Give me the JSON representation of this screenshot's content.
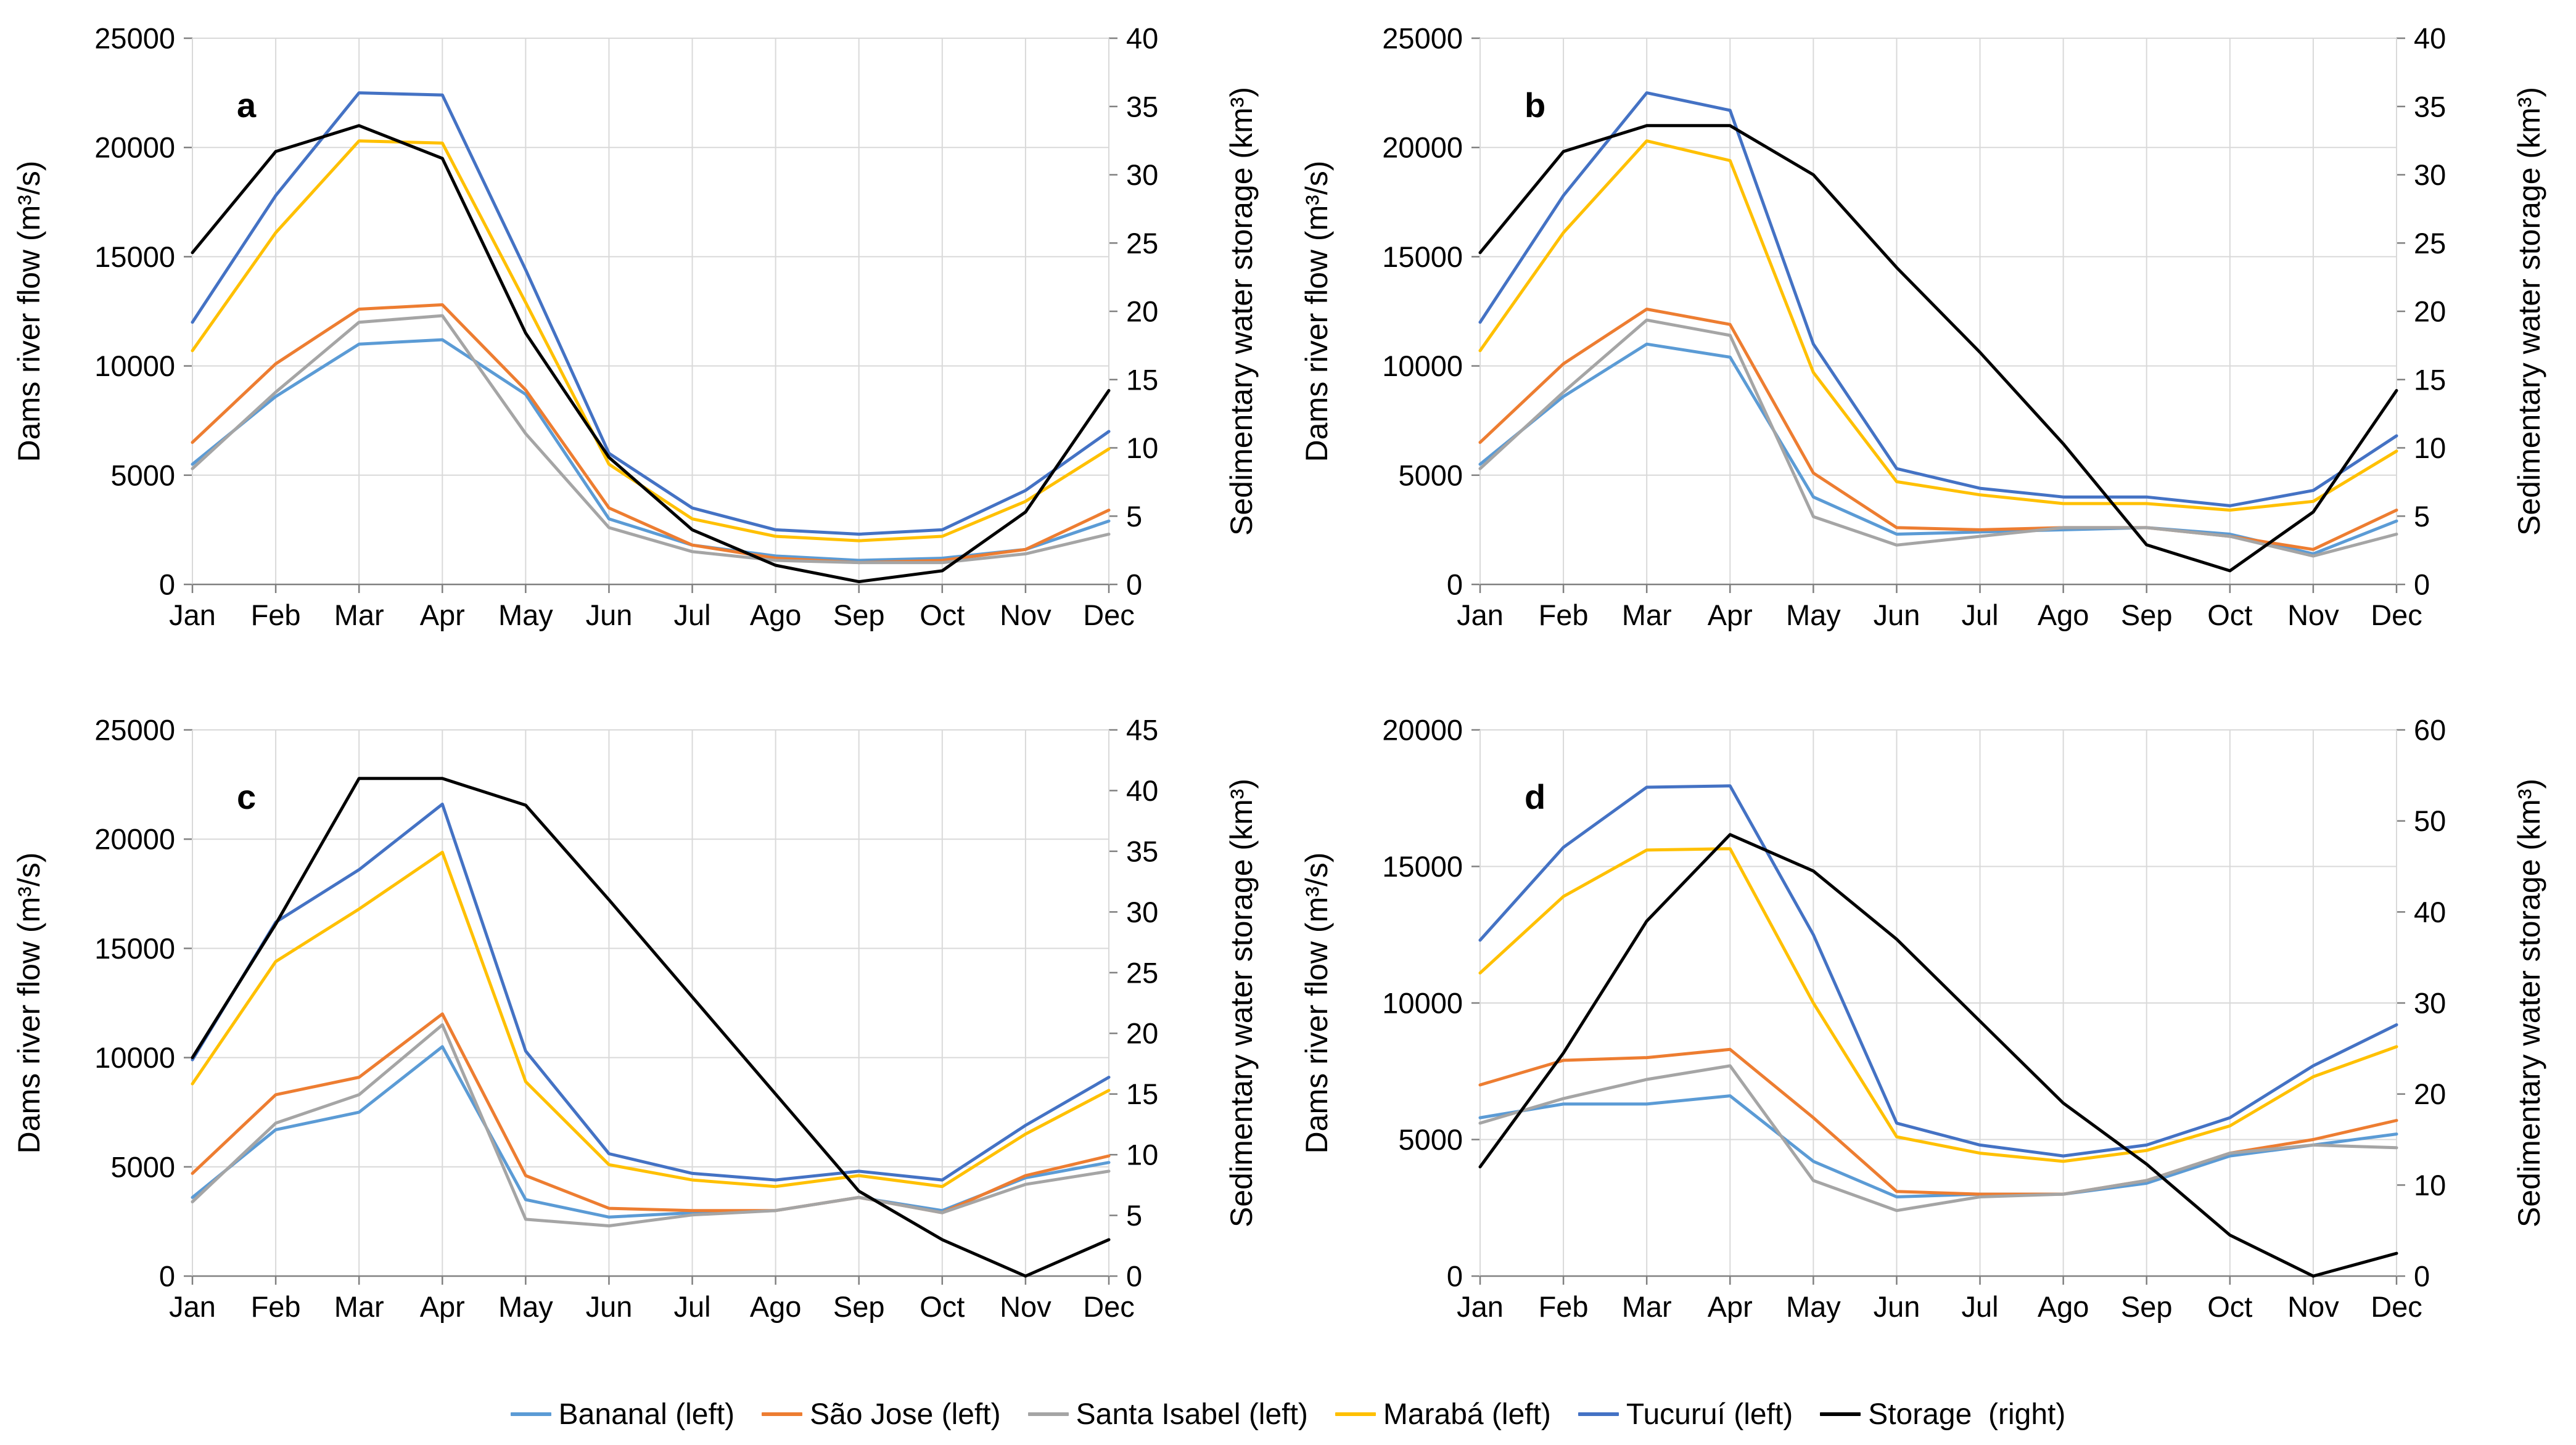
{
  "figure": {
    "left_axis_title": "Dams river flow (m³/s)",
    "right_axis_title": "Sedimentary water storage (km³)"
  },
  "colors": {
    "bananal": "#5B9BD5",
    "sao_jose": "#ED7D31",
    "santa_isabel": "#A5A5A5",
    "maraba": "#FFC000",
    "tucurui": "#4472C4",
    "storage": "#000000",
    "gridline": "#D9D9D9",
    "axis_line": "#808080",
    "text": "#000000"
  },
  "legend": {
    "items": [
      {
        "key": "bananal",
        "label": "Bananal (left)"
      },
      {
        "key": "sao_jose",
        "label": "São Jose (left)"
      },
      {
        "key": "santa_isabel",
        "label": "Santa Isabel (left)"
      },
      {
        "key": "maraba",
        "label": "Marabá (left)"
      },
      {
        "key": "tucurui",
        "label": "Tucuruí (left)"
      },
      {
        "key": "storage",
        "label": "Storage  (right)"
      }
    ]
  },
  "chart_data": [
    {
      "panel": "a",
      "type": "line",
      "grid": true,
      "categories": [
        "Jan",
        "Feb",
        "Mar",
        "Apr",
        "May",
        "Jun",
        "Jul",
        "Ago",
        "Sep",
        "Oct",
        "Nov",
        "Dec"
      ],
      "left_axis": {
        "label": "Dams river flow (m³/s)",
        "min": 0,
        "max": 25000,
        "step": 5000
      },
      "right_axis": {
        "label": "Sedimentary water storage (km³)",
        "min": 0,
        "max": 40,
        "step": 5
      },
      "series": [
        {
          "name": "Bananal (left)",
          "key": "bananal",
          "axis": "left",
          "values": [
            5500,
            8600,
            11000,
            11200,
            8700,
            3000,
            1800,
            1300,
            1100,
            1200,
            1600,
            2900
          ]
        },
        {
          "name": "São Jose (left)",
          "key": "sao_jose",
          "axis": "left",
          "values": [
            6500,
            10100,
            12600,
            12800,
            8900,
            3500,
            1800,
            1200,
            1000,
            1100,
            1600,
            3400
          ]
        },
        {
          "name": "Santa Isabel (left)",
          "key": "santa_isabel",
          "axis": "left",
          "values": [
            5300,
            8800,
            12000,
            12300,
            6900,
            2600,
            1500,
            1100,
            1000,
            1000,
            1400,
            2300
          ]
        },
        {
          "name": "Marabá (left)",
          "key": "maraba",
          "axis": "left",
          "values": [
            10700,
            16100,
            20300,
            20200,
            12900,
            5500,
            3000,
            2200,
            2000,
            2200,
            3800,
            6200
          ]
        },
        {
          "name": "Tucuruí (left)",
          "key": "tucurui",
          "axis": "left",
          "values": [
            12000,
            17800,
            22500,
            22400,
            14400,
            6000,
            3500,
            2500,
            2300,
            2500,
            4300,
            7000
          ]
        },
        {
          "name": "Storage (right)",
          "key": "storage",
          "axis": "right",
          "values": [
            24.3,
            31.7,
            33.6,
            31.2,
            18.4,
            9.3,
            4.0,
            1.4,
            0.2,
            1.0,
            5.3,
            14.2
          ]
        }
      ]
    },
    {
      "panel": "b",
      "type": "line",
      "grid": true,
      "categories": [
        "Jan",
        "Feb",
        "Mar",
        "Apr",
        "May",
        "Jun",
        "Jul",
        "Ago",
        "Sep",
        "Oct",
        "Nov",
        "Dec"
      ],
      "left_axis": {
        "label": "Dams river flow (m³/s)",
        "min": 0,
        "max": 25000,
        "step": 5000
      },
      "right_axis": {
        "label": "Sedimentary water storage (km³)",
        "min": 0,
        "max": 40,
        "step": 5
      },
      "series": [
        {
          "name": "Bananal (left)",
          "key": "bananal",
          "axis": "left",
          "values": [
            5500,
            8600,
            11000,
            10400,
            4000,
            2300,
            2400,
            2500,
            2600,
            2300,
            1400,
            2900
          ]
        },
        {
          "name": "São Jose (left)",
          "key": "sao_jose",
          "axis": "left",
          "values": [
            6500,
            10100,
            12600,
            11900,
            5100,
            2600,
            2500,
            2600,
            2600,
            2200,
            1600,
            3400
          ]
        },
        {
          "name": "Santa Isabel (left)",
          "key": "santa_isabel",
          "axis": "left",
          "values": [
            5300,
            8800,
            12100,
            11400,
            3100,
            1800,
            2200,
            2600,
            2600,
            2200,
            1300,
            2300
          ]
        },
        {
          "name": "Marabá (left)",
          "key": "maraba",
          "axis": "left",
          "values": [
            10700,
            16100,
            20300,
            19400,
            9700,
            4700,
            4100,
            3700,
            3700,
            3400,
            3800,
            6100
          ]
        },
        {
          "name": "Tucuruí (left)",
          "key": "tucurui",
          "axis": "left",
          "values": [
            12000,
            17800,
            22500,
            21700,
            11000,
            5300,
            4400,
            4000,
            4000,
            3600,
            4300,
            6800
          ]
        },
        {
          "name": "Storage (right)",
          "key": "storage",
          "axis": "right",
          "values": [
            24.3,
            31.7,
            33.6,
            33.6,
            30.0,
            23.2,
            17.0,
            10.3,
            2.9,
            1.0,
            5.3,
            14.2
          ]
        }
      ]
    },
    {
      "panel": "c",
      "type": "line",
      "grid": true,
      "categories": [
        "Jan",
        "Feb",
        "Mar",
        "Apr",
        "May",
        "Jun",
        "Jul",
        "Ago",
        "Sep",
        "Oct",
        "Nov",
        "Dec"
      ],
      "left_axis": {
        "label": "Dams river flow (m³/s)",
        "min": 0,
        "max": 25000,
        "step": 5000
      },
      "right_axis": {
        "label": "Sedimentary water storage (km³)",
        "min": 0,
        "max": 45,
        "step": 5
      },
      "series": [
        {
          "name": "Bananal (left)",
          "key": "bananal",
          "axis": "left",
          "values": [
            3600,
            6700,
            7500,
            10500,
            3500,
            2700,
            2900,
            3000,
            3600,
            3000,
            4500,
            5200
          ]
        },
        {
          "name": "São Jose (left)",
          "key": "sao_jose",
          "axis": "left",
          "values": [
            4700,
            8300,
            9100,
            12000,
            4600,
            3100,
            3000,
            3000,
            3600,
            2900,
            4600,
            5500
          ]
        },
        {
          "name": "Santa Isabel (left)",
          "key": "santa_isabel",
          "axis": "left",
          "values": [
            3400,
            7000,
            8300,
            11500,
            2600,
            2300,
            2800,
            3000,
            3600,
            2900,
            4200,
            4800
          ]
        },
        {
          "name": "Marabá (left)",
          "key": "maraba",
          "axis": "left",
          "values": [
            8800,
            14400,
            16800,
            19400,
            8900,
            5100,
            4400,
            4100,
            4600,
            4100,
            6500,
            8500
          ]
        },
        {
          "name": "Tucuruí (left)",
          "key": "tucurui",
          "axis": "left",
          "values": [
            9900,
            16200,
            18600,
            21600,
            10300,
            5600,
            4700,
            4400,
            4800,
            4400,
            6900,
            9100
          ]
        },
        {
          "name": "Storage (right)",
          "key": "storage",
          "axis": "right",
          "values": [
            18.0,
            29.0,
            41.0,
            41.0,
            38.8,
            31.0,
            23.0,
            15.0,
            7.0,
            3.0,
            0.0,
            3.0
          ]
        }
      ]
    },
    {
      "panel": "d",
      "type": "line",
      "grid": true,
      "categories": [
        "Jan",
        "Feb",
        "Mar",
        "Apr",
        "May",
        "Jun",
        "Jul",
        "Ago",
        "Sep",
        "Oct",
        "Nov",
        "Dec"
      ],
      "left_axis": {
        "label": "Dams river flow (m³/s)",
        "min": 0,
        "max": 20000,
        "step": 5000
      },
      "right_axis": {
        "label": "Sedimentary water storage (km³)",
        "min": 0,
        "max": 60,
        "step": 10
      },
      "series": [
        {
          "name": "Bananal (left)",
          "key": "bananal",
          "axis": "left",
          "values": [
            5800,
            6300,
            6300,
            6600,
            4200,
            2900,
            3000,
            3000,
            3400,
            4400,
            4800,
            5200
          ]
        },
        {
          "name": "São Jose (left)",
          "key": "sao_jose",
          "axis": "left",
          "values": [
            7000,
            7900,
            8000,
            8300,
            5800,
            3100,
            3000,
            3000,
            3500,
            4500,
            5000,
            5700
          ]
        },
        {
          "name": "Santa Isabel (left)",
          "key": "santa_isabel",
          "axis": "left",
          "values": [
            5600,
            6500,
            7200,
            7700,
            3500,
            2400,
            2900,
            3000,
            3500,
            4500,
            4800,
            4700
          ]
        },
        {
          "name": "Marabá (left)",
          "key": "maraba",
          "axis": "left",
          "values": [
            11100,
            13900,
            15600,
            15650,
            10000,
            5100,
            4500,
            4200,
            4600,
            5500,
            7300,
            8400
          ]
        },
        {
          "name": "Tucuruí (left)",
          "key": "tucurui",
          "axis": "left",
          "values": [
            12300,
            15700,
            17900,
            17950,
            12500,
            5600,
            4800,
            4400,
            4800,
            5800,
            7700,
            9200
          ]
        },
        {
          "name": "Storage (right)",
          "key": "storage",
          "axis": "right",
          "values": [
            12.0,
            24.5,
            39.0,
            48.5,
            44.5,
            37.0,
            28.0,
            19.0,
            12.3,
            4.5,
            0.0,
            2.5
          ]
        }
      ]
    }
  ]
}
